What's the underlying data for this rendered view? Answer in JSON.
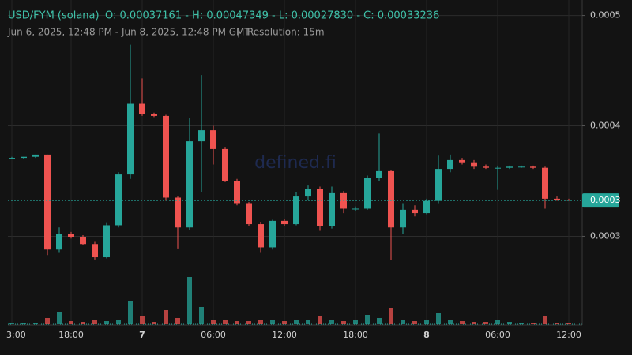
{
  "chart_data": {
    "type": "candlestick",
    "title": "USD/FYM (solana)",
    "ohlc_text": "O: 0.00037161 - H: 0.00047349 - L: 0.00027830 - C: 0.00033236",
    "subtitle": "Jun 6, 2025, 12:48 PM - Jun 8, 2025, 12:48 PM GMT",
    "separator": "|",
    "resolution": "Resolution: 15m",
    "watermark": "defined.fi",
    "up_color": "#26a69a",
    "down_color": "#ef5350",
    "grid": true,
    "categories": [
      "3:00",
      null,
      null,
      null,
      null,
      "18:00",
      null,
      null,
      null,
      null,
      null,
      "7",
      null,
      null,
      null,
      null,
      null,
      "06:00",
      null,
      null,
      null,
      null,
      null,
      "12:00",
      null,
      null,
      null,
      null,
      null,
      "18:00",
      null,
      null,
      null,
      null,
      null,
      "8",
      null,
      null,
      null,
      null,
      null,
      "06:00",
      null,
      null,
      null,
      null,
      null,
      "12:00"
    ],
    "open": [
      0.000371,
      0.000371,
      0.000372,
      0.000374,
      0.000288,
      0.000302,
      0.000299,
      0.000293,
      0.000281,
      0.00031,
      0.000356,
      0.00042,
      0.000411,
      0.000409,
      0.000335,
      0.000308,
      0.000386,
      0.000396,
      0.000379,
      0.00035,
      0.00033,
      0.000311,
      0.00029,
      0.000314,
      0.000311,
      0.000336,
      0.000343,
      0.000309,
      0.000339,
      0.000325,
      0.000325,
      0.000353,
      0.000359,
      0.000308,
      0.000324,
      0.000321,
      0.000332,
      0.000361,
      0.000369,
      0.000367,
      0.000363,
      0.000362,
      0.000362,
      0.000363,
      0.000363,
      0.000362,
      0.000334,
      0.000333
    ],
    "high": [
      0.000372,
      0.000372,
      0.000374,
      0.000374,
      0.000308,
      0.000304,
      0.000301,
      0.000295,
      0.000312,
      0.000358,
      0.00047349,
      0.000443,
      0.000412,
      0.00041,
      0.000336,
      0.000407,
      0.000446,
      0.0004,
      0.000381,
      0.000352,
      0.000331,
      0.000313,
      0.000315,
      0.000316,
      0.00034,
      0.000346,
      0.000345,
      0.000345,
      0.000341,
      0.000327,
      0.000355,
      0.000393,
      0.00036,
      0.00033,
      0.000328,
      0.000334,
      0.000373,
      0.000374,
      0.000371,
      0.000369,
      0.000365,
      0.000364,
      0.000364,
      0.000364,
      0.000364,
      0.000363,
      0.000336,
      0.000334
    ],
    "low": [
      0.00037,
      0.00037,
      0.000371,
      0.000283,
      0.000285,
      0.000298,
      0.000292,
      0.000279,
      0.00028,
      0.000308,
      0.000352,
      0.000409,
      0.000408,
      0.000332,
      0.000289,
      0.000306,
      0.00034,
      0.000365,
      0.000349,
      0.000328,
      0.000309,
      0.000285,
      0.000288,
      0.000309,
      0.00031,
      0.000333,
      0.000305,
      0.000307,
      0.000321,
      0.000323,
      0.000324,
      0.00035,
      0.0002783,
      0.000302,
      0.000318,
      0.00032,
      0.00033,
      0.000358,
      0.000365,
      0.000361,
      0.000361,
      0.000342,
      0.000361,
      0.000362,
      0.000361,
      0.000325,
      0.000332,
      0.000332
    ],
    "close": [
      0.000371,
      0.000372,
      0.000374,
      0.000288,
      0.000302,
      0.000299,
      0.000293,
      0.000281,
      0.00031,
      0.000356,
      0.00042,
      0.000411,
      0.000409,
      0.000335,
      0.000308,
      0.000386,
      0.000396,
      0.000379,
      0.00035,
      0.00033,
      0.000311,
      0.00029,
      0.000314,
      0.000311,
      0.000336,
      0.000343,
      0.000309,
      0.000339,
      0.000325,
      0.000325,
      0.000353,
      0.000359,
      0.000308,
      0.000324,
      0.000321,
      0.000332,
      0.000361,
      0.000369,
      0.000367,
      0.000363,
      0.000362,
      0.000362,
      0.000363,
      0.000363,
      0.000362,
      0.000334,
      0.000333,
      0.00033236
    ],
    "volumes": [
      2,
      1,
      2,
      8,
      16,
      4,
      3,
      5,
      4,
      6,
      30,
      10,
      3,
      18,
      8,
      60,
      22,
      6,
      5,
      4,
      4,
      6,
      5,
      4,
      5,
      6,
      10,
      6,
      4,
      5,
      12,
      8,
      20,
      6,
      4,
      5,
      14,
      6,
      4,
      3,
      3,
      6,
      3,
      2,
      2,
      10,
      2,
      1
    ],
    "ylim": [
      0.000221,
      0.000514
    ],
    "yticks": [
      0.0003,
      0.0004,
      0.0005
    ],
    "last_price": {
      "value": 0.00033236,
      "label": "0.0003"
    }
  }
}
